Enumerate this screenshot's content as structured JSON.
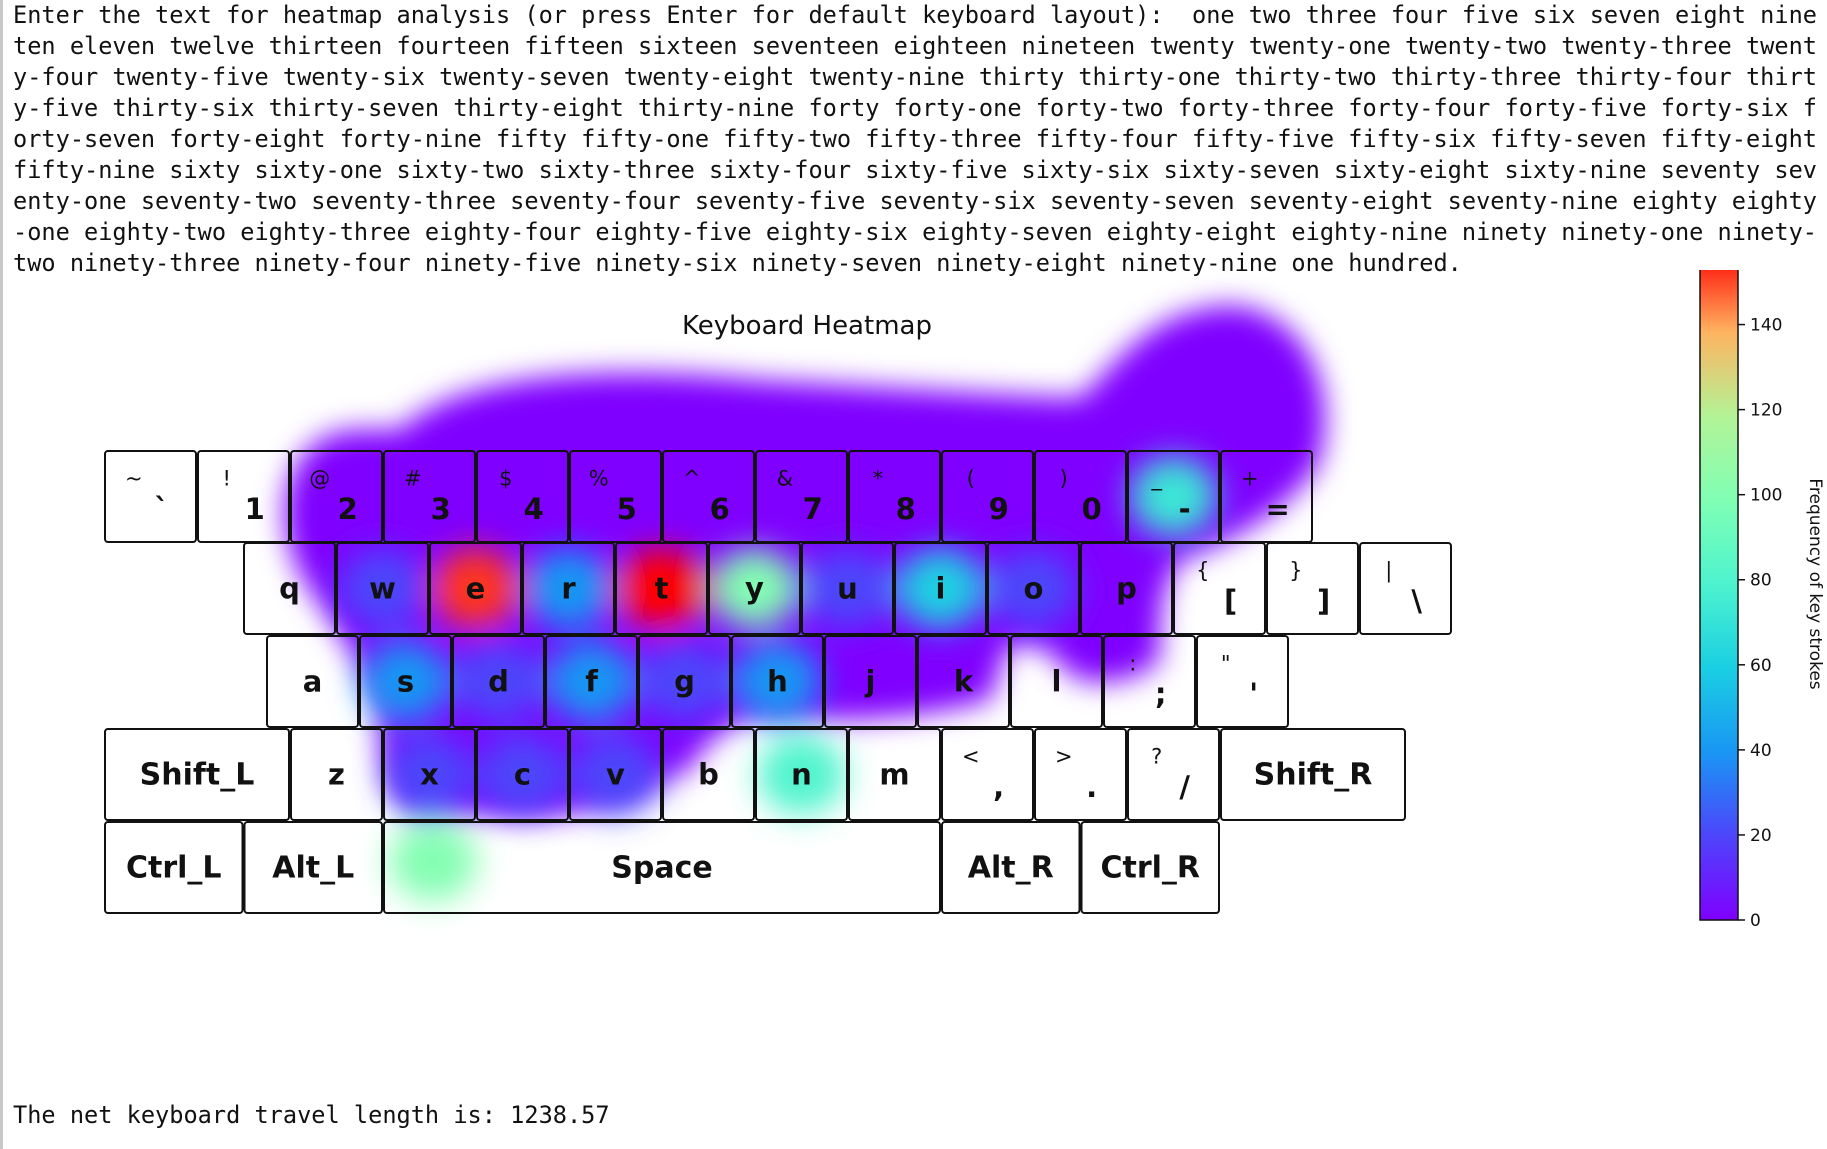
{
  "console": {
    "prompt": "Enter the text for heatmap analysis (or press Enter for default keyboard layout): ",
    "input": " one two three four five six seven eight nine ten eleven twelve thirteen fourteen fifteen sixteen seventeen eighteen nineteen twenty twenty-one twenty-two twenty-three twenty-four twenty-five twenty-six twenty-seven twenty-eight twenty-nine thirty thirty-one thirty-two thirty-three thirty-four thirty-five thirty-six thirty-seven thirty-eight thirty-nine forty forty-one forty-two forty-three forty-four forty-five forty-six forty-seven forty-eight forty-nine fifty fifty-one fifty-two fifty-three fifty-four fifty-five fifty-six fifty-seven fifty-eight fifty-nine sixty sixty-one sixty-two sixty-three sixty-four sixty-five sixty-six sixty-seven sixty-eight sixty-nine seventy seventy-one seventy-two seventy-three seventy-four seventy-five seventy-six seventy-seven seventy-eight seventy-nine eighty eighty-one eighty-two eighty-three eighty-four eighty-five eighty-six eighty-seven eighty-eight eighty-nine ninety ninety-one ninety-two ninety-three ninety-four ninety-five ninety-six ninety-seven ninety-eight ninety-nine one hundred.",
    "result": "The net keyboard travel length is: 1238.57"
  },
  "chart_data": {
    "type": "heatmap",
    "title": "Keyboard Heatmap",
    "colorbar": {
      "label": "Frequency of key strokes",
      "range": [
        0,
        158
      ],
      "ticks": [
        0,
        20,
        40,
        60,
        80,
        100,
        120,
        140
      ],
      "colormap": [
        "#7f00ff",
        "#2c7ef7",
        "#00b5eb",
        "#2adddd",
        "#80ffb4",
        "#d4dd80",
        "#ff7f3f",
        "#ff0000"
      ]
    },
    "rows": [
      [
        {
          "id": "grave",
          "main": "`",
          "shift": "~",
          "count": 0
        },
        {
          "id": "1",
          "main": "1",
          "shift": "!",
          "count": 0
        },
        {
          "id": "2",
          "main": "2",
          "shift": "@",
          "count": 0
        },
        {
          "id": "3",
          "main": "3",
          "shift": "#",
          "count": 0
        },
        {
          "id": "4",
          "main": "4",
          "shift": "$",
          "count": 0
        },
        {
          "id": "5",
          "main": "5",
          "shift": "%",
          "count": 0
        },
        {
          "id": "6",
          "main": "6",
          "shift": "^",
          "count": 0
        },
        {
          "id": "7",
          "main": "7",
          "shift": "&",
          "count": 0
        },
        {
          "id": "8",
          "main": "8",
          "shift": "*",
          "count": 0
        },
        {
          "id": "9",
          "main": "9",
          "shift": "(",
          "count": 0
        },
        {
          "id": "0",
          "main": "0",
          "shift": ")",
          "count": 0
        },
        {
          "id": "minus",
          "main": "-",
          "shift": "_",
          "count": 72
        },
        {
          "id": "equal",
          "main": "=",
          "shift": "+",
          "count": 0
        }
      ],
      [
        {
          "id": "q",
          "main": "q",
          "shift": "",
          "count": 0
        },
        {
          "id": "w",
          "main": "w",
          "shift": "",
          "count": 20
        },
        {
          "id": "e",
          "main": "e",
          "shift": "",
          "count": 152
        },
        {
          "id": "r",
          "main": "r",
          "shift": "",
          "count": 40
        },
        {
          "id": "t",
          "main": "t",
          "shift": "",
          "count": 158
        },
        {
          "id": "y",
          "main": "y",
          "shift": "",
          "count": 100
        },
        {
          "id": "u",
          "main": "u",
          "shift": "",
          "count": 20
        },
        {
          "id": "i",
          "main": "i",
          "shift": "",
          "count": 60
        },
        {
          "id": "o",
          "main": "o",
          "shift": "",
          "count": 20
        },
        {
          "id": "p",
          "main": "p",
          "shift": "",
          "count": 0
        },
        {
          "id": "lbracket",
          "main": "[",
          "shift": "{",
          "count": 0
        },
        {
          "id": "rbracket",
          "main": "]",
          "shift": "}",
          "count": 0
        },
        {
          "id": "backslash",
          "main": "\\",
          "shift": "|",
          "count": 0
        }
      ],
      [
        {
          "id": "a",
          "main": "a",
          "shift": "",
          "count": 0
        },
        {
          "id": "s",
          "main": "s",
          "shift": "",
          "count": 40
        },
        {
          "id": "d",
          "main": "d",
          "shift": "",
          "count": 20
        },
        {
          "id": "f",
          "main": "f",
          "shift": "",
          "count": 40
        },
        {
          "id": "g",
          "main": "g",
          "shift": "",
          "count": 20
        },
        {
          "id": "h",
          "main": "h",
          "shift": "",
          "count": 40
        },
        {
          "id": "j",
          "main": "j",
          "shift": "",
          "count": 0
        },
        {
          "id": "k",
          "main": "k",
          "shift": "",
          "count": 0
        },
        {
          "id": "l",
          "main": "l",
          "shift": "",
          "count": 0
        },
        {
          "id": "semicolon",
          "main": ";",
          "shift": ":",
          "count": 0
        },
        {
          "id": "quote",
          "main": "'",
          "shift": "\"",
          "count": 0
        }
      ],
      [
        {
          "id": "shift_l",
          "main": "Shift_L",
          "shift": "",
          "count": 0
        },
        {
          "id": "z",
          "main": "z",
          "shift": "",
          "count": 0
        },
        {
          "id": "x",
          "main": "x",
          "shift": "",
          "count": 20
        },
        {
          "id": "c",
          "main": "c",
          "shift": "",
          "count": 20
        },
        {
          "id": "v",
          "main": "v",
          "shift": "",
          "count": 20
        },
        {
          "id": "b",
          "main": "b",
          "shift": "",
          "count": 0
        },
        {
          "id": "n",
          "main": "n",
          "shift": "",
          "count": 80
        },
        {
          "id": "m",
          "main": "m",
          "shift": "",
          "count": 0
        },
        {
          "id": "comma",
          "main": ",",
          "shift": "<",
          "count": 0
        },
        {
          "id": "period",
          "main": ".",
          "shift": ">",
          "count": 0
        },
        {
          "id": "slash",
          "main": "/",
          "shift": "?",
          "count": 0
        },
        {
          "id": "shift_r",
          "main": "Shift_R",
          "shift": "",
          "count": 0
        }
      ],
      [
        {
          "id": "ctrl_l",
          "main": "Ctrl_L",
          "shift": "",
          "count": 0
        },
        {
          "id": "alt_l",
          "main": "Alt_L",
          "shift": "",
          "count": 0
        },
        {
          "id": "space",
          "main": "Space",
          "shift": "",
          "count": 100
        },
        {
          "id": "alt_r",
          "main": "Alt_R",
          "shift": "",
          "count": 0
        },
        {
          "id": "ctrl_r",
          "main": "Ctrl_R",
          "shift": "",
          "count": 0
        }
      ]
    ]
  }
}
